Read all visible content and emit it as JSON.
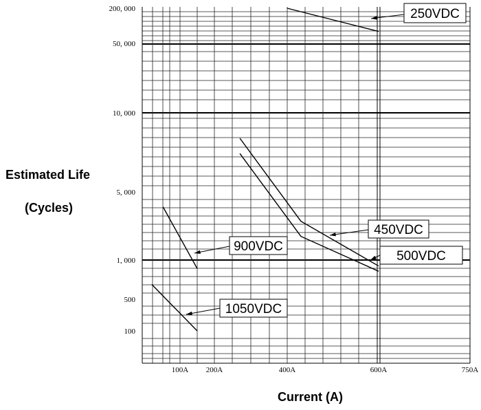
{
  "chart_data": {
    "type": "line",
    "title": "",
    "ylabel_line1": "Estimated Life",
    "ylabel_line2": "(Cycles)",
    "xlabel": "Current (A)",
    "x_ticks": [
      {
        "value": 100,
        "label": "100A"
      },
      {
        "value": 200,
        "label": "200A"
      },
      {
        "value": 400,
        "label": "400A"
      },
      {
        "value": 600,
        "label": "600A"
      },
      {
        "value": 750,
        "label": "750A"
      }
    ],
    "y_ticks": [
      {
        "value": 200000,
        "label": "200, 000"
      },
      {
        "value": 50000,
        "label": "50, 000"
      },
      {
        "value": 10000,
        "label": "10, 000"
      },
      {
        "value": 5000,
        "label": "5, 000"
      },
      {
        "value": 1000,
        "label": "1, 000"
      },
      {
        "value": 500,
        "label": "500"
      },
      {
        "value": 100,
        "label": "100"
      }
    ],
    "grid": true,
    "series": [
      {
        "name": "250VDC",
        "points": [
          [
            400,
            200000
          ],
          [
            600,
            80000
          ]
        ]
      },
      {
        "name": "450VDC",
        "points": [
          [
            270,
            8000
          ],
          [
            430,
            2500
          ],
          [
            600,
            900
          ]
        ]
      },
      {
        "name": "500VDC",
        "points": [
          [
            270,
            7000
          ],
          [
            430,
            1750
          ],
          [
            600,
            820
          ]
        ]
      },
      {
        "name": "900VDC",
        "points": [
          [
            55,
            3500
          ],
          [
            150,
            860
          ]
        ]
      },
      {
        "name": "1050VDC",
        "points": [
          [
            25,
            650
          ],
          [
            150,
            100
          ]
        ]
      }
    ]
  }
}
